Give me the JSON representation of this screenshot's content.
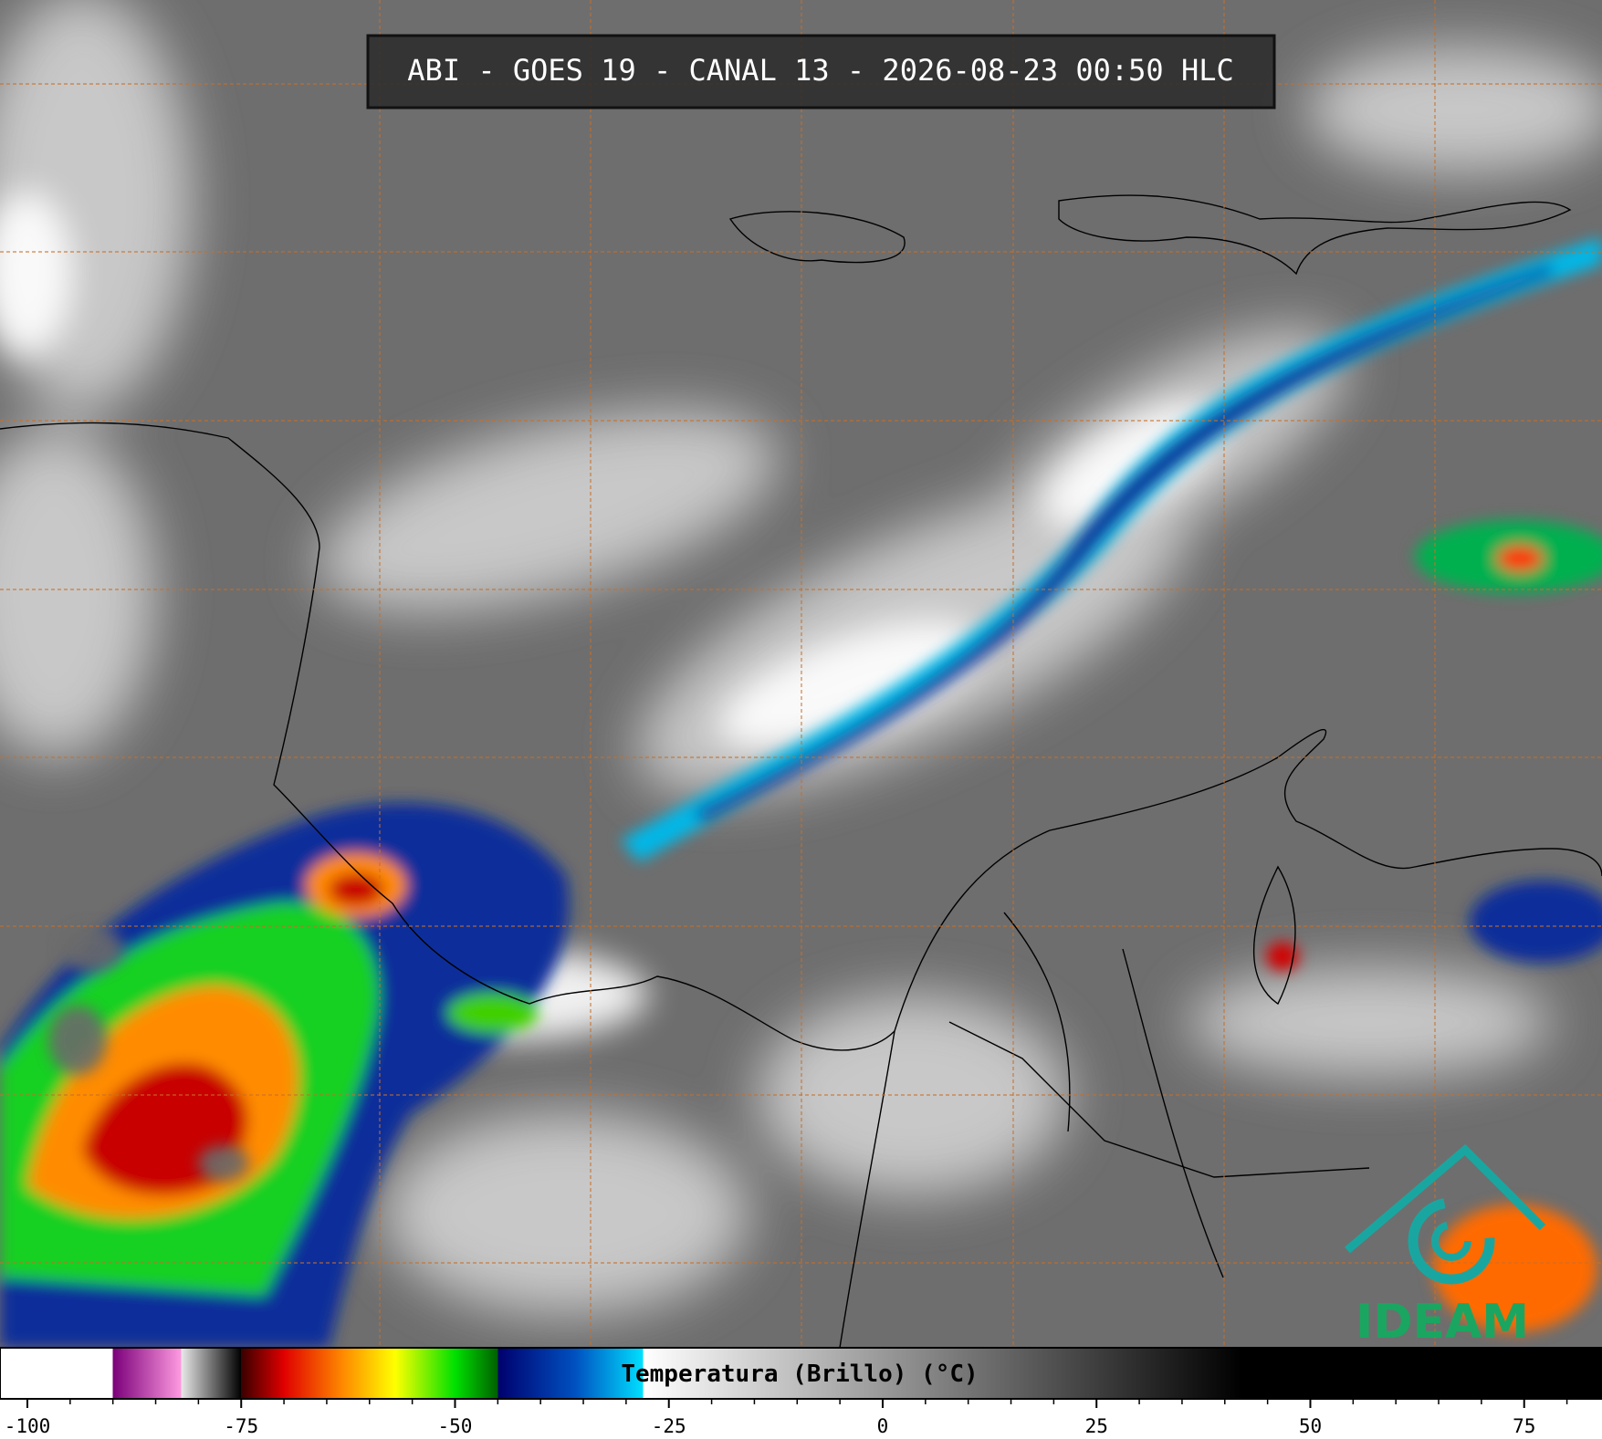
{
  "header": {
    "title": "ABI - GOES 19 - CANAL 13 - 2026-08-23 00:50 HLC"
  },
  "logo": {
    "text": "IDEAM"
  },
  "colorbar": {
    "label": "Temperatura (Brillo) (°C)",
    "lim": [
      -103.2,
      84.1
    ],
    "ticks": [
      -100,
      -75,
      -50,
      -25,
      0,
      25,
      50,
      75
    ],
    "minor_ticks": [
      -95,
      -90,
      -85,
      -80,
      -70,
      -65,
      -60,
      -55,
      -45,
      -40,
      -35,
      -30,
      -20,
      -15,
      -10,
      -5,
      5,
      10,
      15,
      20,
      30,
      35,
      40,
      45,
      55,
      60,
      65,
      70,
      80
    ],
    "colormap": [
      {
        "value": -103.2,
        "color": "#ffffff"
      },
      {
        "value": -90,
        "color": "#ffffff"
      },
      {
        "value": -90,
        "color": "#7a007a"
      },
      {
        "value": -82,
        "color": "#ff9ae0"
      },
      {
        "value": -82,
        "color": "#e8e8e8"
      },
      {
        "value": -75,
        "color": "#000000"
      },
      {
        "value": -75,
        "color": "#3a0000"
      },
      {
        "value": -70,
        "color": "#e00000"
      },
      {
        "value": -63,
        "color": "#ff8c00"
      },
      {
        "value": -57,
        "color": "#ffff00"
      },
      {
        "value": -50,
        "color": "#00e000"
      },
      {
        "value": -45,
        "color": "#006000"
      },
      {
        "value": -45,
        "color": "#00006e"
      },
      {
        "value": -36,
        "color": "#0050c0"
      },
      {
        "value": -28,
        "color": "#00e0ff"
      },
      {
        "value": -28,
        "color": "#ffffff"
      },
      {
        "value": 42,
        "color": "#000000"
      },
      {
        "value": 84.1,
        "color": "#000000"
      }
    ]
  }
}
